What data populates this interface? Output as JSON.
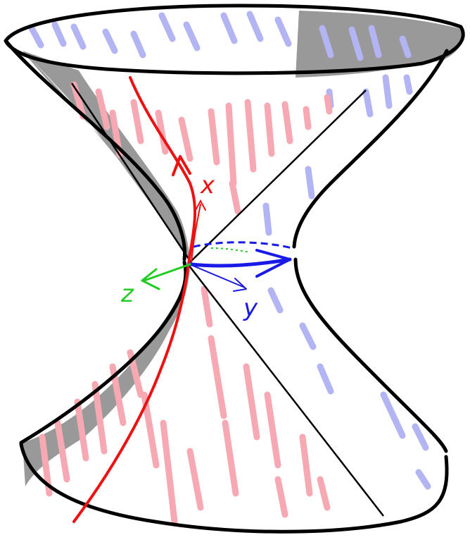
{
  "labels": {
    "x": "x",
    "y": "y",
    "z": "z"
  },
  "colors": {
    "outline": "#000000",
    "shade": "#999999",
    "red_line": "#ee1111",
    "red_hatch": "#f7a9b3",
    "blue_hatch": "#b2b4f3",
    "blue_axis": "#1a1ae6",
    "green_axis": "#22cc22",
    "surface": "#ffffff"
  }
}
